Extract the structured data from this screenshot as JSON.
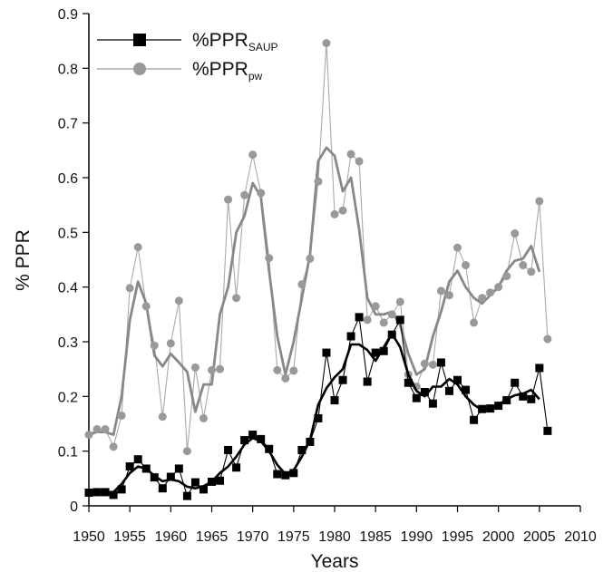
{
  "chart_data": {
    "type": "line",
    "xlabel": "Years",
    "ylabel": "% PPR",
    "xlim": [
      1950,
      2010
    ],
    "ylim": [
      0,
      0.9
    ],
    "x_ticks": [
      "1950",
      "1955",
      "1960",
      "1965",
      "1970",
      "1975",
      "1980",
      "1985",
      "1990",
      "1995",
      "2000",
      "2005",
      "2010"
    ],
    "y_ticks": [
      "0",
      "0.1",
      "0.2",
      "0.3",
      "0.4",
      "0.5",
      "0.6",
      "0.7",
      "0.8",
      "0.9"
    ],
    "grid": false,
    "legend_position": "top-left",
    "series": [
      {
        "name": "%PPR",
        "name_sub": "SAUP",
        "color": "#000000",
        "marker": "square",
        "points": [
          [
            1950,
            0.024
          ],
          [
            1951,
            0.025
          ],
          [
            1952,
            0.025
          ],
          [
            1953,
            0.02
          ],
          [
            1954,
            0.03
          ],
          [
            1955,
            0.072
          ],
          [
            1956,
            0.085
          ],
          [
            1957,
            0.068
          ],
          [
            1958,
            0.052
          ],
          [
            1959,
            0.032
          ],
          [
            1960,
            0.053
          ],
          [
            1961,
            0.068
          ],
          [
            1962,
            0.018
          ],
          [
            1963,
            0.043
          ],
          [
            1964,
            0.03
          ],
          [
            1965,
            0.044
          ],
          [
            1966,
            0.046
          ],
          [
            1967,
            0.102
          ],
          [
            1968,
            0.07
          ],
          [
            1969,
            0.12
          ],
          [
            1970,
            0.13
          ],
          [
            1971,
            0.122
          ],
          [
            1972,
            0.104
          ],
          [
            1973,
            0.058
          ],
          [
            1974,
            0.056
          ],
          [
            1975,
            0.06
          ],
          [
            1976,
            0.102
          ],
          [
            1977,
            0.117
          ],
          [
            1978,
            0.16
          ],
          [
            1979,
            0.28
          ],
          [
            1980,
            0.193
          ],
          [
            1981,
            0.23
          ],
          [
            1982,
            0.31
          ],
          [
            1983,
            0.345
          ],
          [
            1984,
            0.227
          ],
          [
            1985,
            0.28
          ],
          [
            1986,
            0.283
          ],
          [
            1987,
            0.313
          ],
          [
            1988,
            0.34
          ],
          [
            1989,
            0.225
          ],
          [
            1990,
            0.197
          ],
          [
            1991,
            0.208
          ],
          [
            1992,
            0.187
          ],
          [
            1993,
            0.262
          ],
          [
            1994,
            0.21
          ],
          [
            1995,
            0.23
          ],
          [
            1996,
            0.212
          ],
          [
            1997,
            0.157
          ],
          [
            1998,
            0.177
          ],
          [
            1999,
            0.178
          ],
          [
            2000,
            0.183
          ],
          [
            2001,
            0.193
          ],
          [
            2002,
            0.225
          ],
          [
            2003,
            0.2
          ],
          [
            2004,
            0.195
          ],
          [
            2005,
            0.252
          ],
          [
            2006,
            0.137
          ]
        ],
        "smoothed": [
          [
            1950,
            0.024
          ],
          [
            1951,
            0.025
          ],
          [
            1952,
            0.025
          ],
          [
            1953,
            0.025
          ],
          [
            1954,
            0.04
          ],
          [
            1955,
            0.06
          ],
          [
            1956,
            0.072
          ],
          [
            1957,
            0.068
          ],
          [
            1958,
            0.055
          ],
          [
            1959,
            0.045
          ],
          [
            1960,
            0.048
          ],
          [
            1961,
            0.045
          ],
          [
            1962,
            0.035
          ],
          [
            1963,
            0.032
          ],
          [
            1964,
            0.036
          ],
          [
            1965,
            0.044
          ],
          [
            1966,
            0.06
          ],
          [
            1967,
            0.072
          ],
          [
            1968,
            0.09
          ],
          [
            1969,
            0.112
          ],
          [
            1970,
            0.124
          ],
          [
            1971,
            0.118
          ],
          [
            1972,
            0.1
          ],
          [
            1973,
            0.075
          ],
          [
            1974,
            0.058
          ],
          [
            1975,
            0.065
          ],
          [
            1976,
            0.09
          ],
          [
            1977,
            0.12
          ],
          [
            1978,
            0.185
          ],
          [
            1979,
            0.215
          ],
          [
            1980,
            0.235
          ],
          [
            1981,
            0.25
          ],
          [
            1982,
            0.295
          ],
          [
            1983,
            0.295
          ],
          [
            1984,
            0.285
          ],
          [
            1985,
            0.265
          ],
          [
            1986,
            0.29
          ],
          [
            1987,
            0.315
          ],
          [
            1988,
            0.29
          ],
          [
            1989,
            0.24
          ],
          [
            1990,
            0.21
          ],
          [
            1991,
            0.2
          ],
          [
            1992,
            0.218
          ],
          [
            1993,
            0.218
          ],
          [
            1994,
            0.232
          ],
          [
            1995,
            0.222
          ],
          [
            1996,
            0.2
          ],
          [
            1997,
            0.185
          ],
          [
            1998,
            0.175
          ],
          [
            1999,
            0.178
          ],
          [
            2000,
            0.185
          ],
          [
            2001,
            0.195
          ],
          [
            2002,
            0.202
          ],
          [
            2003,
            0.205
          ],
          [
            2004,
            0.212
          ],
          [
            2005,
            0.195
          ]
        ]
      },
      {
        "name": "%PPR",
        "name_sub": "pw",
        "color": "#999999",
        "marker": "circle",
        "points": [
          [
            1950,
            0.13
          ],
          [
            1951,
            0.14
          ],
          [
            1952,
            0.14
          ],
          [
            1953,
            0.108
          ],
          [
            1954,
            0.165
          ],
          [
            1955,
            0.398
          ],
          [
            1956,
            0.473
          ],
          [
            1957,
            0.365
          ],
          [
            1958,
            0.293
          ],
          [
            1959,
            0.163
          ],
          [
            1960,
            0.297
          ],
          [
            1961,
            0.375
          ],
          [
            1962,
            0.1
          ],
          [
            1963,
            0.253
          ],
          [
            1964,
            0.16
          ],
          [
            1965,
            0.248
          ],
          [
            1966,
            0.25
          ],
          [
            1967,
            0.56
          ],
          [
            1968,
            0.38
          ],
          [
            1969,
            0.568
          ],
          [
            1970,
            0.642
          ],
          [
            1971,
            0.572
          ],
          [
            1972,
            0.453
          ],
          [
            1973,
            0.248
          ],
          [
            1974,
            0.233
          ],
          [
            1975,
            0.247
          ],
          [
            1976,
            0.405
          ],
          [
            1977,
            0.452
          ],
          [
            1978,
            0.593
          ],
          [
            1979,
            0.846
          ],
          [
            1980,
            0.533
          ],
          [
            1981,
            0.54
          ],
          [
            1982,
            0.643
          ],
          [
            1983,
            0.63
          ],
          [
            1984,
            0.34
          ],
          [
            1985,
            0.365
          ],
          [
            1986,
            0.335
          ],
          [
            1987,
            0.35
          ],
          [
            1988,
            0.373
          ],
          [
            1989,
            0.24
          ],
          [
            1990,
            0.218
          ],
          [
            1991,
            0.26
          ],
          [
            1992,
            0.258
          ],
          [
            1993,
            0.393
          ],
          [
            1994,
            0.385
          ],
          [
            1995,
            0.472
          ],
          [
            1996,
            0.44
          ],
          [
            1997,
            0.335
          ],
          [
            1998,
            0.38
          ],
          [
            1999,
            0.39
          ],
          [
            2000,
            0.4
          ],
          [
            2001,
            0.42
          ],
          [
            2002,
            0.498
          ],
          [
            2003,
            0.44
          ],
          [
            2004,
            0.428
          ],
          [
            2005,
            0.557
          ],
          [
            2006,
            0.305
          ]
        ],
        "smoothed": [
          [
            1950,
            0.13
          ],
          [
            1951,
            0.135
          ],
          [
            1952,
            0.135
          ],
          [
            1953,
            0.13
          ],
          [
            1954,
            0.2
          ],
          [
            1955,
            0.34
          ],
          [
            1956,
            0.41
          ],
          [
            1957,
            0.37
          ],
          [
            1958,
            0.275
          ],
          [
            1959,
            0.255
          ],
          [
            1960,
            0.278
          ],
          [
            1961,
            0.262
          ],
          [
            1962,
            0.245
          ],
          [
            1963,
            0.172
          ],
          [
            1964,
            0.222
          ],
          [
            1965,
            0.222
          ],
          [
            1966,
            0.35
          ],
          [
            1967,
            0.4
          ],
          [
            1968,
            0.5
          ],
          [
            1969,
            0.53
          ],
          [
            1970,
            0.59
          ],
          [
            1971,
            0.565
          ],
          [
            1972,
            0.43
          ],
          [
            1973,
            0.31
          ],
          [
            1974,
            0.24
          ],
          [
            1975,
            0.3
          ],
          [
            1976,
            0.38
          ],
          [
            1977,
            0.46
          ],
          [
            1978,
            0.63
          ],
          [
            1979,
            0.655
          ],
          [
            1980,
            0.64
          ],
          [
            1981,
            0.575
          ],
          [
            1982,
            0.6
          ],
          [
            1983,
            0.505
          ],
          [
            1984,
            0.38
          ],
          [
            1985,
            0.35
          ],
          [
            1986,
            0.35
          ],
          [
            1987,
            0.355
          ],
          [
            1988,
            0.33
          ],
          [
            1989,
            0.278
          ],
          [
            1990,
            0.24
          ],
          [
            1991,
            0.25
          ],
          [
            1992,
            0.31
          ],
          [
            1993,
            0.355
          ],
          [
            1994,
            0.41
          ],
          [
            1995,
            0.43
          ],
          [
            1996,
            0.4
          ],
          [
            1997,
            0.38
          ],
          [
            1998,
            0.37
          ],
          [
            1999,
            0.385
          ],
          [
            2000,
            0.4
          ],
          [
            2001,
            0.43
          ],
          [
            2002,
            0.448
          ],
          [
            2003,
            0.452
          ],
          [
            2004,
            0.475
          ],
          [
            2005,
            0.428
          ]
        ]
      }
    ]
  }
}
